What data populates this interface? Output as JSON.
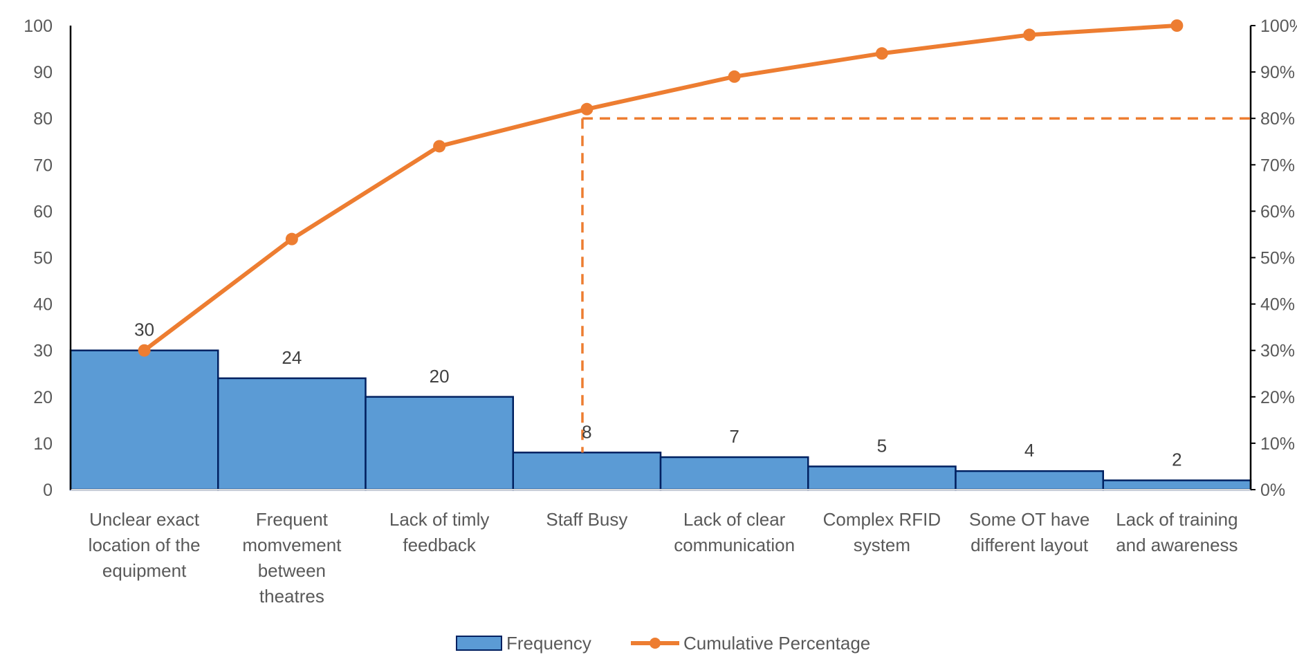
{
  "chart_data": {
    "type": "bar",
    "categories": [
      "Unclear exact location of the equipment",
      "Frequent momvement between theatres",
      "Lack of timly feedback",
      "Staff Busy",
      "Lack of clear communication",
      "Complex RFID system",
      "Some OT have different layout",
      "Lack of training and awareness"
    ],
    "category_lines": [
      [
        "Unclear exact",
        "location of the",
        "equipment"
      ],
      [
        "Frequent",
        "momvement",
        "between",
        "theatres"
      ],
      [
        "Lack of timly",
        "feedback"
      ],
      [
        "Staff Busy"
      ],
      [
        "Lack of clear",
        "communication"
      ],
      [
        "Complex RFID",
        "system"
      ],
      [
        "Some OT have",
        "different layout"
      ],
      [
        "Lack of training",
        "and awareness"
      ]
    ],
    "series": [
      {
        "name": "Frequency",
        "type": "bar",
        "axis": "left",
        "values": [
          30,
          24,
          20,
          8,
          7,
          5,
          4,
          2
        ]
      },
      {
        "name": "Cumulative Percentage",
        "type": "line",
        "axis": "right",
        "values": [
          30,
          54,
          74,
          82,
          89,
          94,
          98,
          100
        ]
      }
    ],
    "data_labels": [
      "30",
      "24",
      "20",
      "8",
      "7",
      "5",
      "4",
      "2"
    ],
    "y_left": {
      "min": 0,
      "max": 100,
      "ticks": [
        "0",
        "10",
        "20",
        "30",
        "40",
        "50",
        "60",
        "70",
        "80",
        "90",
        "100"
      ]
    },
    "y_right": {
      "min": 0,
      "max": 100,
      "ticks": [
        "0%",
        "10%",
        "20%",
        "30%",
        "40%",
        "50%",
        "60%",
        "70%",
        "80%",
        "90%",
        "100%"
      ]
    },
    "reference_line": {
      "value": 80,
      "x_category": "Staff Busy",
      "style": "dashed"
    },
    "legend": {
      "position": "bottom"
    },
    "grid": false,
    "colors": {
      "bar_fill": "#5B9BD5",
      "bar_stroke": "#002060",
      "line": "#ED7D31",
      "axis": "#000000",
      "text": "#595959"
    }
  }
}
